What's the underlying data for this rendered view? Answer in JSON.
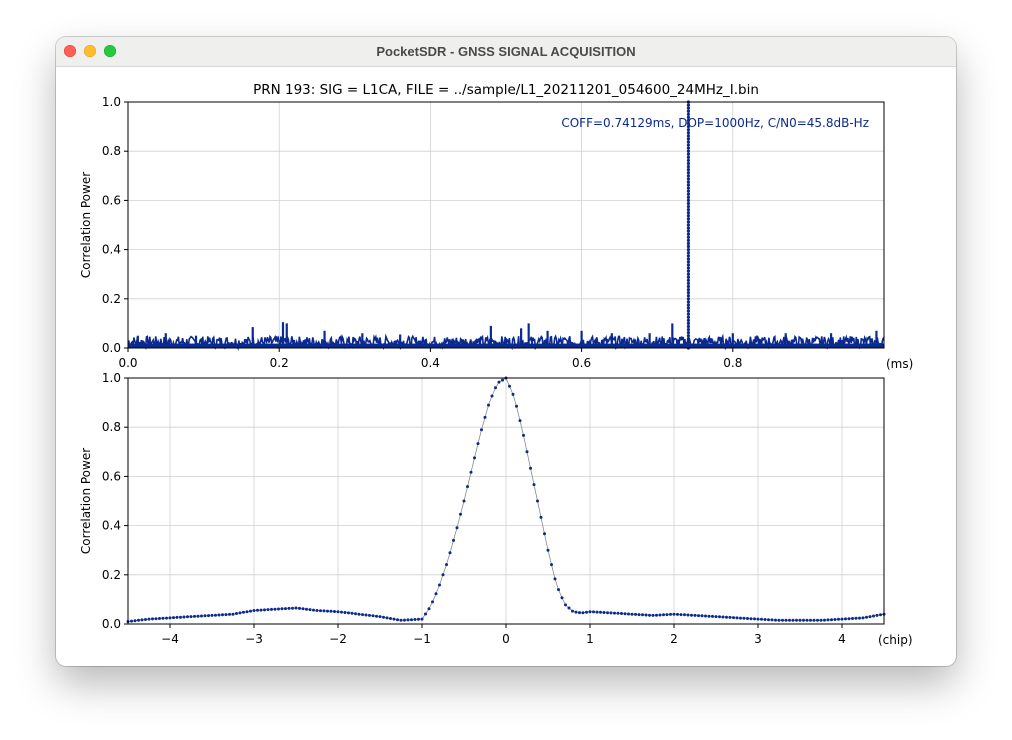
{
  "window": {
    "title": "PocketSDR - GNSS SIGNAL ACQUISITION"
  },
  "colors": {
    "series": "#0b2a8f",
    "annotation": "#0b2a8f",
    "grid": "#d0d0d0",
    "line_gray": "#8a8a8a"
  },
  "chart_data": [
    {
      "type": "scatter",
      "title": "PRN 193: SIG = L1CA, FILE = ../sample/L1_20211201_054600_24MHz_I.bin",
      "xlabel": "(ms)",
      "ylabel": "Correlation Power",
      "xlim": [
        0,
        1.0
      ],
      "ylim": [
        0,
        1.0
      ],
      "xticks": [
        "0.0",
        "0.2",
        "0.4",
        "0.6",
        "0.8"
      ],
      "yticks": [
        "0.0",
        "0.2",
        "0.4",
        "0.6",
        "0.8",
        "1.0"
      ],
      "grid": true,
      "annotation": "COFF=0.74129ms, DOP=1000Hz, C/N0=45.8dB-Hz",
      "noise_floor": 0.03,
      "peak": {
        "x": 0.74129,
        "y": 1.0
      },
      "spikes": [
        {
          "x": 0.013,
          "y": 0.05
        },
        {
          "x": 0.05,
          "y": 0.06
        },
        {
          "x": 0.09,
          "y": 0.05
        },
        {
          "x": 0.165,
          "y": 0.085
        },
        {
          "x": 0.205,
          "y": 0.105
        },
        {
          "x": 0.21,
          "y": 0.1
        },
        {
          "x": 0.26,
          "y": 0.07
        },
        {
          "x": 0.31,
          "y": 0.06
        },
        {
          "x": 0.36,
          "y": 0.055
        },
        {
          "x": 0.48,
          "y": 0.09
        },
        {
          "x": 0.52,
          "y": 0.08
        },
        {
          "x": 0.53,
          "y": 0.1
        },
        {
          "x": 0.555,
          "y": 0.07
        },
        {
          "x": 0.6,
          "y": 0.07
        },
        {
          "x": 0.64,
          "y": 0.06
        },
        {
          "x": 0.69,
          "y": 0.06
        },
        {
          "x": 0.72,
          "y": 0.1
        },
        {
          "x": 0.8,
          "y": 0.06
        },
        {
          "x": 0.87,
          "y": 0.06
        },
        {
          "x": 0.93,
          "y": 0.06
        },
        {
          "x": 0.99,
          "y": 0.07
        }
      ]
    },
    {
      "type": "line",
      "xlabel": "(chip)",
      "ylabel": "Correlation Power",
      "xlim": [
        -4.5,
        4.5
      ],
      "ylim": [
        0,
        1.0
      ],
      "xticks": [
        "−4",
        "−3",
        "−2",
        "−1",
        "0",
        "1",
        "2",
        "3",
        "4"
      ],
      "yticks": [
        "0.0",
        "0.2",
        "0.4",
        "0.6",
        "0.8",
        "1.0"
      ],
      "grid": true,
      "x": [
        -4.5,
        -4.25,
        -4.0,
        -3.75,
        -3.5,
        -3.25,
        -3.0,
        -2.75,
        -2.5,
        -2.25,
        -2.0,
        -1.75,
        -1.5,
        -1.25,
        -1.0,
        -0.9,
        -0.8,
        -0.7,
        -0.6,
        -0.5,
        -0.4,
        -0.3,
        -0.2,
        -0.1,
        0.0,
        0.1,
        0.2,
        0.3,
        0.4,
        0.5,
        0.6,
        0.7,
        0.8,
        0.9,
        1.0,
        1.25,
        1.5,
        1.75,
        2.0,
        2.25,
        2.5,
        2.75,
        3.0,
        3.25,
        3.5,
        3.75,
        4.0,
        4.25,
        4.5
      ],
      "y": [
        0.01,
        0.02,
        0.025,
        0.03,
        0.035,
        0.04,
        0.055,
        0.06,
        0.065,
        0.055,
        0.05,
        0.04,
        0.03,
        0.015,
        0.02,
        0.07,
        0.15,
        0.25,
        0.37,
        0.5,
        0.64,
        0.78,
        0.9,
        0.98,
        1.0,
        0.92,
        0.78,
        0.62,
        0.46,
        0.3,
        0.16,
        0.08,
        0.05,
        0.045,
        0.05,
        0.045,
        0.04,
        0.035,
        0.04,
        0.035,
        0.03,
        0.025,
        0.02,
        0.015,
        0.015,
        0.015,
        0.02,
        0.025,
        0.04
      ]
    }
  ]
}
